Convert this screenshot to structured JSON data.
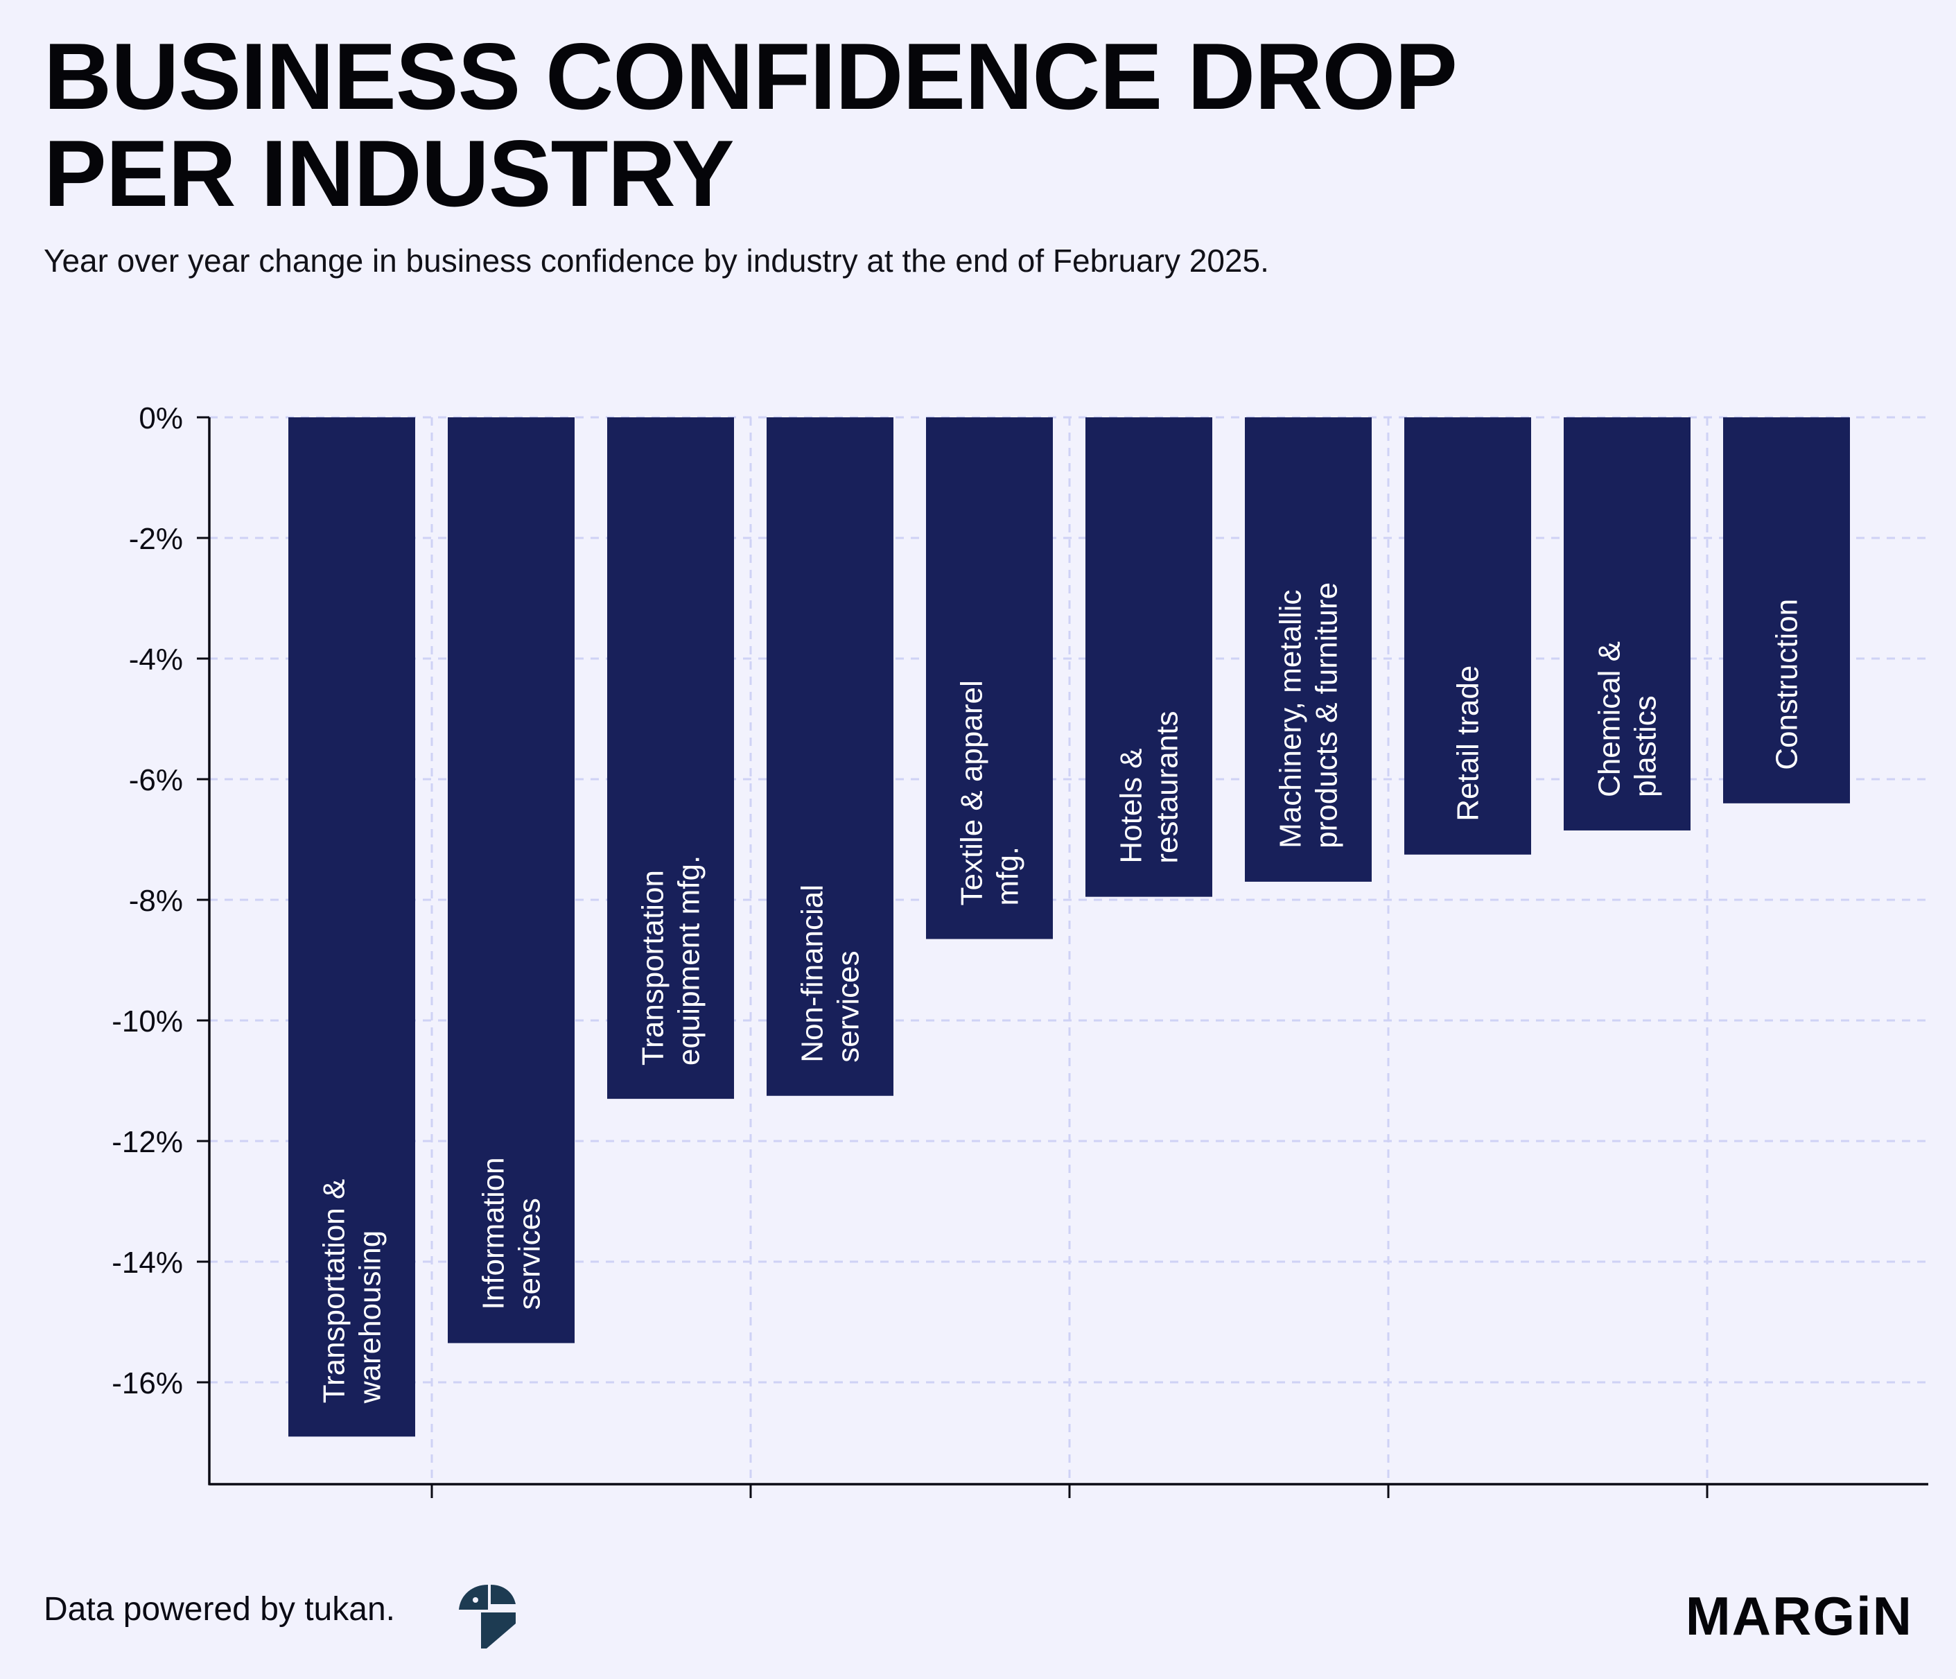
{
  "header": {
    "title_line1": "BUSINESS CONFIDENCE DROP",
    "title_line2": "PER INDUSTRY",
    "subtitle": "Year over year change in business confidence by industry at the end of February 2025."
  },
  "footer": {
    "source_text": "Data powered by tukan.",
    "source_logo_icon": "tukan-logo-icon",
    "brand_logo": "MARGiN"
  },
  "colors": {
    "background": "#f2f2fd",
    "bar": "#18205a",
    "bar_label": "#ffffff",
    "grid": "#cfd2f5",
    "axis": "#0b0b14",
    "text": "#0b0b14"
  },
  "chart_data": {
    "type": "bar",
    "orientation": "vertical",
    "title": "BUSINESS CONFIDENCE DROP PER INDUSTRY",
    "subtitle": "Year over year change in business confidence by industry at the end of February 2025.",
    "xlabel": "",
    "ylabel": "",
    "ylim": [
      -17.75,
      0
    ],
    "yticks": [
      0,
      -2,
      -4,
      -6,
      -8,
      -10,
      -12,
      -14,
      -16
    ],
    "ytick_labels": [
      "0%",
      "-2%",
      "-4%",
      "-6%",
      "-8%",
      "-10%",
      "-12%",
      "-14%",
      "-16%"
    ],
    "grid": true,
    "grid_style": "dashed",
    "legend": "none",
    "categories": [
      [
        "Transportation &",
        "warehousing"
      ],
      [
        "Information",
        "services"
      ],
      [
        "Transportation",
        "equipment mfg."
      ],
      [
        "Non-financial",
        "services"
      ],
      [
        "Textile & apparel",
        "mfg."
      ],
      [
        "Hotels &",
        "restaurants"
      ],
      [
        "Machinery, metallic",
        "products & furniture"
      ],
      [
        "Retail trade"
      ],
      [
        "Chemical &",
        "plastics"
      ],
      [
        "Construction"
      ]
    ],
    "values": [
      -16.9,
      -15.35,
      -11.3,
      -11.25,
      -8.65,
      -7.95,
      -7.7,
      -7.25,
      -6.85,
      -6.4
    ]
  }
}
